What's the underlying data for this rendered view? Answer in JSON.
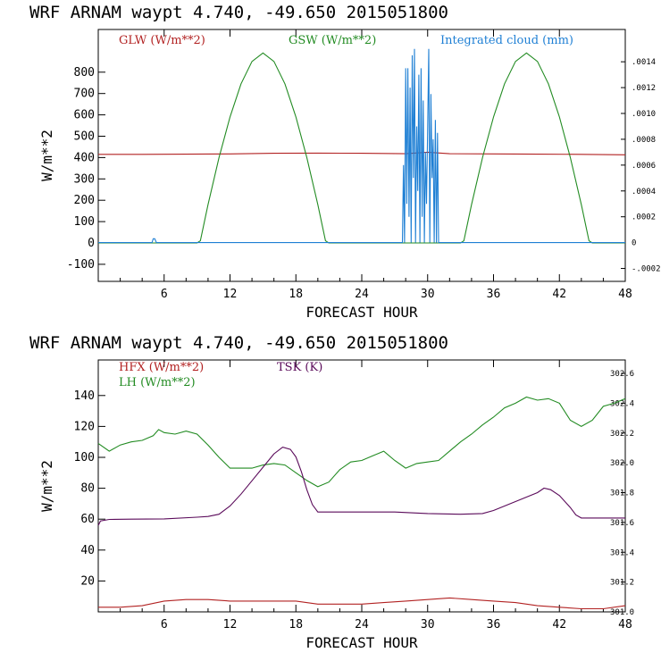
{
  "chart_data": [
    {
      "type": "line",
      "title": "WRF   ARNAM waypt     4.740, -49.650  2015051800",
      "xlabel": "FORECAST HOUR",
      "ylabel": "W/m**2",
      "xlim": [
        0,
        48
      ],
      "ylim": [
        -180,
        1000
      ],
      "y2lim": [
        -0.0003,
        0.00165
      ],
      "xticks": [
        "6",
        "12",
        "18",
        "24",
        "30",
        "36",
        "42",
        "48"
      ],
      "yticks": [
        "-100",
        "0",
        "100",
        "200",
        "300",
        "400",
        "500",
        "600",
        "700",
        "800"
      ],
      "y2ticks": [
        ".0014",
        ".0012",
        ".0010",
        ".0008",
        ".0006",
        ".0004",
        ".0002",
        "0",
        "-.0002"
      ],
      "series": [
        {
          "name": "GLW (W/m**2)",
          "color": "#b22222",
          "axis": "left",
          "x": [
            0,
            4,
            8,
            12,
            16,
            20,
            24,
            28,
            30,
            32,
            36,
            40,
            44,
            48
          ],
          "y": [
            415,
            415,
            416,
            417,
            420,
            421,
            420,
            418,
            425,
            418,
            417,
            416,
            415,
            413
          ]
        },
        {
          "name": "GSW (W/m**2)",
          "color": "#228b22",
          "axis": "left",
          "x": [
            0,
            9,
            9.3,
            10,
            11,
            12,
            13,
            14,
            15,
            16,
            17,
            18,
            19,
            20,
            20.7,
            21,
            33,
            33.3,
            34,
            35,
            36,
            37,
            38,
            39,
            40,
            41,
            42,
            43,
            44,
            44.7,
            45,
            48
          ],
          "y": [
            0,
            0,
            10,
            180,
            400,
            590,
            745,
            850,
            890,
            850,
            745,
            590,
            400,
            180,
            10,
            0,
            0,
            10,
            180,
            400,
            590,
            745,
            850,
            890,
            850,
            745,
            590,
            400,
            180,
            10,
            0,
            0
          ]
        },
        {
          "name": "Integrated cloud (mm)",
          "color": "#1e7fd4",
          "axis": "right",
          "x": [
            0,
            4.9,
            5.0,
            5.15,
            5.3,
            27.7,
            27.8,
            27.9,
            28.0,
            28.1,
            28.2,
            28.3,
            28.4,
            28.5,
            28.6,
            28.7,
            28.8,
            28.9,
            29.0,
            29.1,
            29.2,
            29.3,
            29.4,
            29.5,
            29.6,
            29.7,
            29.8,
            29.9,
            30.0,
            30.1,
            30.2,
            30.3,
            30.4,
            30.5,
            30.6,
            30.7,
            30.8,
            30.9,
            31.0,
            48
          ],
          "y": [
            0,
            0,
            3e-05,
            3e-05,
            0,
            0,
            0.0006,
            0,
            0.00135,
            0.0003,
            0.00135,
            0.0002,
            0.0012,
            0,
            0.00145,
            0.0005,
            0.0015,
            0,
            0.0009,
            0.0004,
            0.0013,
            0,
            0.00135,
            0.0002,
            0.0011,
            0,
            0.0007,
            0.0003,
            0.0009,
            0.0015,
            0,
            0.00115,
            0.0005,
            0.0008,
            0,
            0.00095,
            0,
            0.00085,
            0,
            0
          ]
        }
      ]
    },
    {
      "type": "line",
      "title": "WRF   ARNAM waypt     4.740, -49.650  2015051800",
      "xlabel": "FORECAST HOUR",
      "ylabel": "W/m**2",
      "xlim": [
        0,
        48
      ],
      "ylim": [
        0,
        163
      ],
      "y2lim": [
        301,
        302.69
      ],
      "xticks": [
        "6",
        "12",
        "18",
        "24",
        "30",
        "36",
        "42",
        "48"
      ],
      "yticks": [
        "20",
        "40",
        "60",
        "80",
        "100",
        "120",
        "140"
      ],
      "y2ticks": [
        "302.6",
        "302.4",
        "302.2",
        "302.0",
        "301.8",
        "301.6",
        "301.4",
        "301.2",
        "301.0"
      ],
      "series": [
        {
          "name": "HFX (W/m**2)",
          "color": "#b22222",
          "axis": "left",
          "x": [
            0,
            2,
            4,
            6,
            8,
            10,
            12,
            14,
            16,
            18,
            20,
            22,
            24,
            26,
            28,
            30,
            32,
            34,
            36,
            38,
            40,
            42,
            44,
            46,
            48
          ],
          "y": [
            3,
            3,
            4,
            7,
            8,
            8,
            7,
            7,
            7,
            7,
            5,
            5,
            5,
            6,
            7,
            8,
            9,
            8,
            7,
            6,
            4,
            3,
            2,
            2,
            4
          ]
        },
        {
          "name": "LH  (W/m**2)",
          "color": "#228b22",
          "axis": "left",
          "x": [
            0,
            1,
            2,
            3,
            4,
            5,
            5.5,
            6,
            7,
            8,
            9,
            10,
            11,
            12,
            13,
            14,
            15,
            16,
            17,
            18,
            19,
            20,
            21,
            22,
            23,
            24,
            25,
            26,
            27,
            28,
            29,
            30,
            31,
            32,
            33,
            34,
            35,
            36,
            37,
            38,
            39,
            40,
            41,
            42,
            43,
            44,
            45,
            46,
            47,
            48
          ],
          "y": [
            109,
            104,
            108,
            110,
            111,
            114,
            118,
            116,
            115,
            117,
            115,
            108,
            100,
            93,
            93,
            93,
            95,
            96,
            95,
            90,
            85,
            81,
            84,
            92,
            97,
            98,
            101,
            104,
            98,
            93,
            96,
            97,
            98,
            104,
            110,
            115,
            121,
            126,
            132,
            135,
            139,
            137,
            138,
            135,
            124,
            120,
            124,
            133,
            135,
            138
          ]
        },
        {
          "name": "TSK (K)",
          "color": "#5a0a5a",
          "axis": "right",
          "x": [
            0,
            0.2,
            1,
            3,
            6,
            9,
            10,
            11,
            12,
            13,
            14,
            15,
            16,
            16.8,
            17.5,
            18,
            18.5,
            19,
            19.5,
            20,
            21,
            24,
            27,
            30,
            33,
            35,
            36,
            37,
            38,
            39,
            40,
            40.6,
            41.2,
            42,
            43,
            43.5,
            44,
            46,
            48
          ],
          "y": [
            301.58,
            301.61,
            301.62,
            301.622,
            301.624,
            301.635,
            301.64,
            301.655,
            301.71,
            301.79,
            301.88,
            301.97,
            302.06,
            302.105,
            302.09,
            302.04,
            301.94,
            301.82,
            301.72,
            301.67,
            301.67,
            301.67,
            301.67,
            301.66,
            301.655,
            301.66,
            301.68,
            301.71,
            301.74,
            301.77,
            301.8,
            301.83,
            301.82,
            301.78,
            301.7,
            301.65,
            301.63,
            301.63,
            301.63
          ]
        }
      ]
    }
  ]
}
